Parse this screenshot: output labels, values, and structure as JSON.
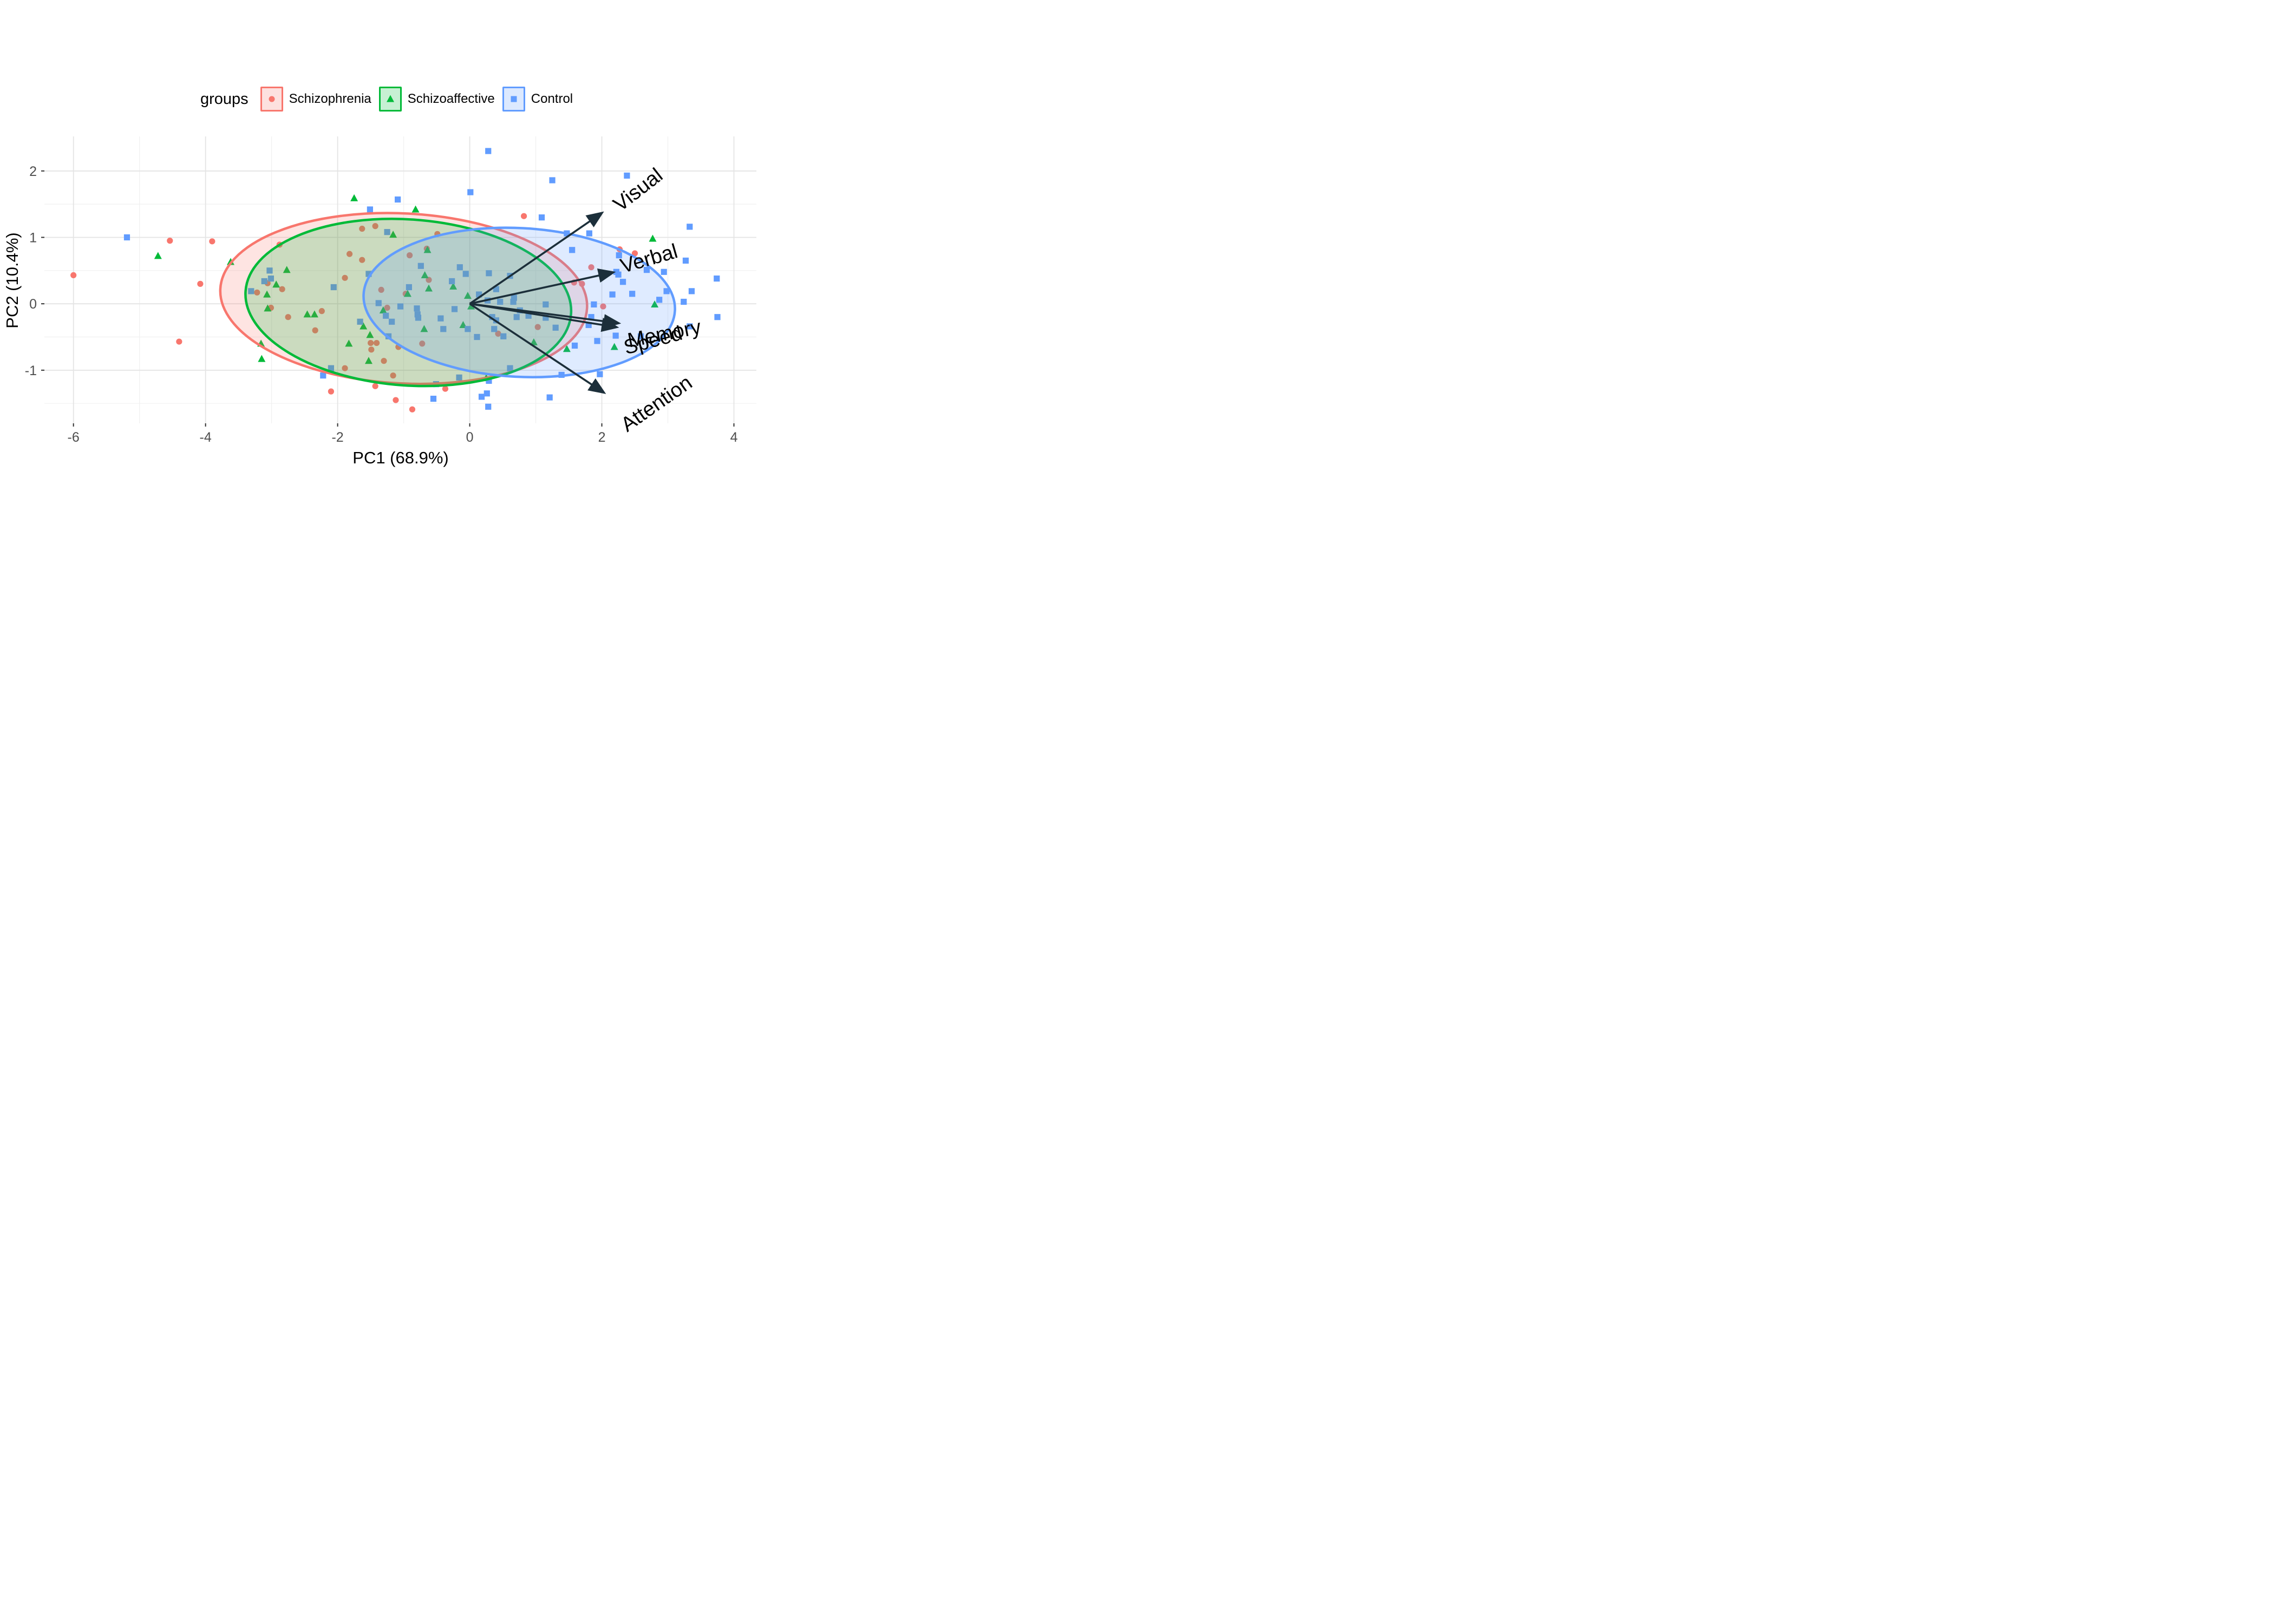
{
  "chart_data": {
    "type": "scatter",
    "subtype": "pca-biplot-with-confidence-ellipses",
    "title": "",
    "xlabel": "PC1 (68.9%)",
    "ylabel": "PC2 (10.4%)",
    "xlim": [
      -6.44,
      4.34
    ],
    "ylim": [
      -1.8,
      2.52
    ],
    "x_ticks": [
      -6,
      -4,
      -2,
      0,
      2,
      4
    ],
    "y_ticks": [
      -1,
      0,
      1,
      2
    ],
    "x_minor_gridlines": [
      -5,
      -3,
      -1,
      1,
      3
    ],
    "y_minor_gridlines": [
      -1.5,
      -0.5,
      0.5,
      1.5
    ],
    "grid": "on",
    "legend_position": "top",
    "legend_title": "groups",
    "tick_color": "#4D4D4D",
    "arrow_color": "#1c2f3a",
    "series": [
      {
        "name": "Schizophrenia",
        "shape": "circle",
        "color": "#F8766D",
        "ellipse": {
          "cx": -1.0,
          "cy": 0.08,
          "rx": 2.78,
          "ry": 1.28,
          "angle_deg": 3
        },
        "points": [
          [
            -6.0,
            0.43
          ],
          [
            -4.54,
            0.95
          ],
          [
            -4.4,
            -0.57
          ],
          [
            -4.08,
            0.3
          ],
          [
            -3.9,
            0.94
          ],
          [
            -3.22,
            0.17
          ],
          [
            -3.06,
            0.31
          ],
          [
            -3.01,
            -0.06
          ],
          [
            -2.88,
            0.89
          ],
          [
            -2.84,
            0.22
          ],
          [
            -2.75,
            -0.2
          ],
          [
            -2.34,
            -0.4
          ],
          [
            -2.24,
            -0.11
          ],
          [
            -2.1,
            -1.32
          ],
          [
            -1.89,
            0.39
          ],
          [
            -1.89,
            -0.97
          ],
          [
            -1.82,
            0.75
          ],
          [
            -1.63,
            1.13
          ],
          [
            -1.63,
            0.66
          ],
          [
            -1.5,
            -0.59
          ],
          [
            -1.49,
            -0.69
          ],
          [
            -1.43,
            1.17
          ],
          [
            -1.43,
            -1.24
          ],
          [
            -1.41,
            -0.59
          ],
          [
            -1.34,
            0.21
          ],
          [
            -1.3,
            -0.86
          ],
          [
            -1.25,
            -0.06
          ],
          [
            -1.16,
            -1.08
          ],
          [
            -1.12,
            -1.45
          ],
          [
            -1.08,
            -0.65
          ],
          [
            -0.97,
            0.15
          ],
          [
            -0.91,
            0.73
          ],
          [
            -0.87,
            -1.59
          ],
          [
            -0.72,
            -0.6
          ],
          [
            -0.65,
            0.83
          ],
          [
            -0.62,
            0.36
          ],
          [
            -0.49,
            1.05
          ],
          [
            -0.37,
            -1.28
          ],
          [
            0.43,
            -0.45
          ],
          [
            0.82,
            1.32
          ],
          [
            1.03,
            -0.35
          ],
          [
            1.58,
            0.32
          ],
          [
            1.7,
            0.3
          ],
          [
            1.84,
            0.55
          ],
          [
            2.02,
            -0.04
          ],
          [
            2.27,
            0.82
          ],
          [
            2.5,
            0.76
          ]
        ]
      },
      {
        "name": "Schizoaffective",
        "shape": "triangle",
        "color": "#00BA38",
        "ellipse": {
          "cx": -0.93,
          "cy": 0.02,
          "rx": 2.47,
          "ry": 1.25,
          "angle_deg": 4
        },
        "points": [
          [
            -4.72,
            0.72
          ],
          [
            -3.62,
            0.63
          ],
          [
            -3.16,
            -0.6
          ],
          [
            -3.15,
            -0.83
          ],
          [
            -3.07,
            0.14
          ],
          [
            -3.06,
            -0.07
          ],
          [
            -2.93,
            0.29
          ],
          [
            -2.77,
            0.51
          ],
          [
            -2.46,
            -0.16
          ],
          [
            -2.35,
            -0.16
          ],
          [
            -1.83,
            -0.6
          ],
          [
            -1.75,
            1.59
          ],
          [
            -1.61,
            -0.34
          ],
          [
            -1.53,
            -0.86
          ],
          [
            -1.51,
            -0.47
          ],
          [
            -1.31,
            -0.1
          ],
          [
            -1.16,
            1.04
          ],
          [
            -0.94,
            0.15
          ],
          [
            -0.82,
            1.42
          ],
          [
            -0.69,
            -0.38
          ],
          [
            -0.68,
            0.43
          ],
          [
            -0.64,
            0.81
          ],
          [
            -0.62,
            0.23
          ],
          [
            -0.25,
            0.26
          ],
          [
            -0.1,
            -0.32
          ],
          [
            -0.03,
            0.12
          ],
          [
            0.02,
            -0.04
          ],
          [
            0.25,
            -1.12
          ],
          [
            0.97,
            -0.58
          ],
          [
            1.47,
            -0.68
          ],
          [
            2.19,
            -0.65
          ],
          [
            2.77,
            0.98
          ],
          [
            2.8,
            -0.01
          ]
        ]
      },
      {
        "name": "Control",
        "shape": "square",
        "color": "#619CFF",
        "ellipse": {
          "cx": 0.75,
          "cy": 0.02,
          "rx": 2.36,
          "ry": 1.12,
          "angle_deg": 3
        },
        "points": [
          [
            -5.19,
            1.0
          ],
          [
            -3.31,
            0.19
          ],
          [
            -3.11,
            0.34
          ],
          [
            -3.03,
            0.5
          ],
          [
            -3.01,
            0.38
          ],
          [
            -2.22,
            -1.08
          ],
          [
            -2.1,
            -0.97
          ],
          [
            -2.06,
            0.25
          ],
          [
            -1.66,
            -0.27
          ],
          [
            -1.53,
            0.45
          ],
          [
            -1.51,
            1.42
          ],
          [
            -1.38,
            0.01
          ],
          [
            -1.27,
            -0.18
          ],
          [
            -1.25,
            1.08
          ],
          [
            -1.23,
            -0.49
          ],
          [
            -1.18,
            -0.27
          ],
          [
            -1.09,
            1.57
          ],
          [
            -1.05,
            -0.04
          ],
          [
            -0.92,
            0.25
          ],
          [
            -0.8,
            -0.07
          ],
          [
            -0.79,
            -0.16
          ],
          [
            -0.78,
            -0.21
          ],
          [
            -0.74,
            0.57
          ],
          [
            -0.55,
            -1.43
          ],
          [
            -0.51,
            -1.21
          ],
          [
            -0.44,
            -0.22
          ],
          [
            -0.4,
            -0.38
          ],
          [
            -0.27,
            0.34
          ],
          [
            -0.23,
            -0.08
          ],
          [
            -0.16,
            -1.11
          ],
          [
            -0.15,
            0.55
          ],
          [
            -0.06,
            0.45
          ],
          [
            -0.03,
            -0.38
          ],
          [
            0.01,
            1.68
          ],
          [
            0.11,
            -0.5
          ],
          [
            0.14,
            0.14
          ],
          [
            0.18,
            -1.4
          ],
          [
            0.26,
            -1.35
          ],
          [
            0.27,
            0.05
          ],
          [
            0.28,
            2.3
          ],
          [
            0.28,
            -1.55
          ],
          [
            0.29,
            0.46
          ],
          [
            0.29,
            -1.16
          ],
          [
            0.34,
            -0.2
          ],
          [
            0.37,
            -0.38
          ],
          [
            0.4,
            0.22
          ],
          [
            0.4,
            -0.25
          ],
          [
            0.46,
            0.03
          ],
          [
            0.51,
            -0.49
          ],
          [
            0.61,
            0.42
          ],
          [
            0.61,
            -0.97
          ],
          [
            0.66,
            0.03
          ],
          [
            0.67,
            0.09
          ],
          [
            0.71,
            -0.2
          ],
          [
            0.76,
            -0.1
          ],
          [
            0.89,
            -0.18
          ],
          [
            1.09,
            1.3
          ],
          [
            1.15,
            -0.01
          ],
          [
            1.15,
            -0.21
          ],
          [
            1.21,
            -1.41
          ],
          [
            1.25,
            1.86
          ],
          [
            1.3,
            -0.36
          ],
          [
            1.39,
            -1.07
          ],
          [
            1.47,
            1.06
          ],
          [
            1.55,
            0.81
          ],
          [
            1.59,
            -0.63
          ],
          [
            1.8,
            -0.32
          ],
          [
            1.81,
            1.06
          ],
          [
            1.84,
            -0.2
          ],
          [
            1.88,
            -0.01
          ],
          [
            1.93,
            -0.56
          ],
          [
            1.97,
            -1.06
          ],
          [
            2.07,
            -0.34
          ],
          [
            2.16,
            0.14
          ],
          [
            2.21,
            -0.48
          ],
          [
            2.22,
            0.48
          ],
          [
            2.25,
            0.44
          ],
          [
            2.26,
            0.73
          ],
          [
            2.32,
            0.33
          ],
          [
            2.38,
            1.93
          ],
          [
            2.46,
            0.15
          ],
          [
            2.59,
            -0.49
          ],
          [
            2.68,
            0.51
          ],
          [
            2.87,
            0.06
          ],
          [
            2.94,
            0.48
          ],
          [
            2.98,
            0.19
          ],
          [
            3.24,
            0.03
          ],
          [
            3.27,
            0.65
          ],
          [
            3.33,
            1.16
          ],
          [
            3.33,
            -0.34
          ],
          [
            3.36,
            0.19
          ],
          [
            3.74,
            0.38
          ],
          [
            3.75,
            -0.2
          ]
        ]
      }
    ],
    "loadings_arrows": [
      {
        "label": "Visual",
        "x": 1.99,
        "y": 1.36,
        "label_x": 2.56,
        "label_y": 1.7,
        "label_angle_deg": -38
      },
      {
        "label": "Verbal",
        "x": 2.16,
        "y": 0.47,
        "label_x": 2.72,
        "label_y": 0.66,
        "label_angle_deg": -16
      },
      {
        "label": "Memory",
        "x": 2.24,
        "y": -0.29,
        "label_x": 2.95,
        "label_y": -0.47,
        "label_angle_deg": -11
      },
      {
        "label": "Speed",
        "x": 2.21,
        "y": -0.35,
        "label_x": 2.78,
        "label_y": -0.57,
        "label_angle_deg": -15
      },
      {
        "label": "Attention",
        "x": 2.02,
        "y": -1.33,
        "label_x": 2.84,
        "label_y": -1.52,
        "label_angle_deg": -35
      }
    ],
    "legend": {
      "title": "groups",
      "items": [
        {
          "label": "Schizophrenia",
          "color": "#F8766D",
          "shape": "circle"
        },
        {
          "label": "Schizoaffective",
          "color": "#00BA38",
          "shape": "triangle"
        },
        {
          "label": "Control",
          "color": "#619CFF",
          "shape": "square"
        }
      ]
    }
  },
  "axes": {
    "x_title": "PC1 (68.9%)",
    "y_title": "PC2 (10.4%)"
  },
  "legend": {
    "title": "groups",
    "item_0": "Schizophrenia",
    "item_1": "Schizoaffective",
    "item_2": "Control"
  }
}
